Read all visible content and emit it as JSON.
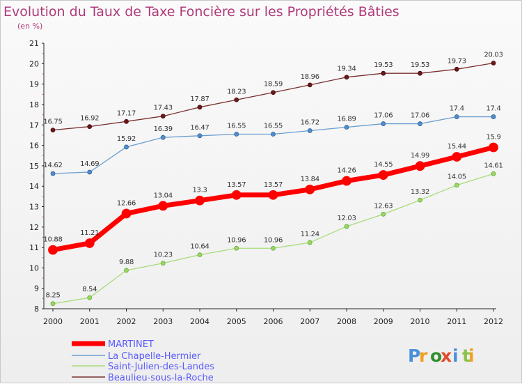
{
  "chart_data": {
    "type": "line",
    "title": "Evolution du Taux de Taxe Foncière sur les Propriétés Bâties",
    "subtitle": "(en %)",
    "categories": [
      "2000",
      "2001",
      "2002",
      "2003",
      "2004",
      "2005",
      "2006",
      "2007",
      "2008",
      "2009",
      "2010",
      "2011",
      "2012"
    ],
    "ylim": [
      8,
      21
    ],
    "yticks": [
      8,
      9,
      10,
      11,
      12,
      13,
      14,
      15,
      16,
      17,
      18,
      19,
      20,
      21
    ],
    "grid": false,
    "legend_position": "bottom-left",
    "series": [
      {
        "name": "MARTINET",
        "color": "#ff0000",
        "values": [
          10.88,
          11.21,
          12.66,
          13.04,
          13.3,
          13.57,
          13.57,
          13.84,
          14.26,
          14.55,
          14.99,
          15.44,
          15.9
        ],
        "labels": [
          "10.88",
          "11.21",
          "12.66",
          "13.04",
          "13.3",
          "13.57",
          "13.57",
          "13.84",
          "14.26",
          "14.55",
          "14.99",
          "15.44",
          "15.9"
        ]
      },
      {
        "name": "La Chapelle-Hermier",
        "color": "#6a9ed0",
        "values": [
          14.62,
          14.69,
          15.92,
          16.39,
          16.47,
          16.55,
          16.55,
          16.72,
          16.89,
          17.06,
          17.06,
          17.4,
          17.4
        ],
        "labels": [
          "14.62",
          "14.69",
          "15.92",
          "16.39",
          "16.47",
          "16.55",
          "16.55",
          "16.72",
          "16.89",
          "17.06",
          "17.06",
          "17.4",
          "17.4"
        ]
      },
      {
        "name": "Saint-Julien-des-Landes",
        "color": "#a8dc7a",
        "values": [
          8.25,
          8.54,
          9.88,
          10.23,
          10.64,
          10.96,
          10.96,
          11.24,
          12.03,
          12.63,
          13.32,
          14.05,
          14.61
        ],
        "labels": [
          "8.25",
          "8.54",
          "9.88",
          "10.23",
          "10.64",
          "10.96",
          "10.96",
          "11.24",
          "12.03",
          "12.63",
          "13.32",
          "14.05",
          "14.61"
        ]
      },
      {
        "name": "Beaulieu-sous-la-Roche",
        "color": "#7a3030",
        "values": [
          16.75,
          16.92,
          17.17,
          17.43,
          17.87,
          18.23,
          18.59,
          18.96,
          19.34,
          19.53,
          19.53,
          19.73,
          20.03
        ],
        "labels": [
          "16.75",
          "16.92",
          "17.17",
          "17.43",
          "17.87",
          "18.23",
          "18.59",
          "18.96",
          "19.34",
          "19.53",
          "19.53",
          "19.73",
          "20.03"
        ]
      }
    ]
  },
  "logo": {
    "text": "Proxiti",
    "colors": [
      "#4a90d9",
      "#f0a020",
      "#2f8f2f",
      "#e24a2a",
      "#4a90d9",
      "#8bc34a",
      "#f0a020"
    ]
  }
}
